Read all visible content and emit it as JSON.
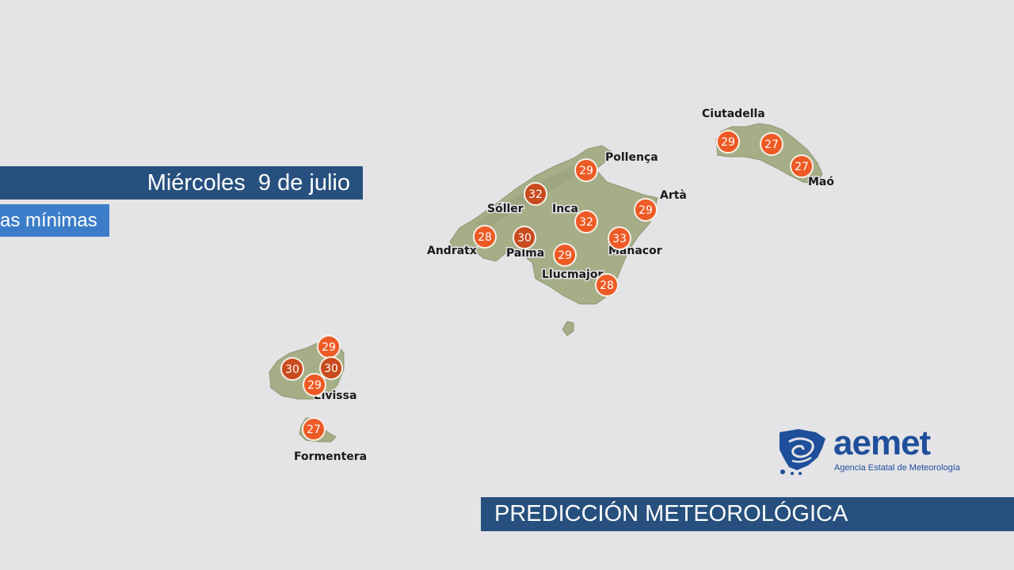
{
  "header": {
    "date_label": "Miércoles  9 de julio",
    "subtitle": "as mínimas"
  },
  "footer": {
    "title": "PREDICCIÓN METEOROLÓGICA"
  },
  "logo": {
    "word": "aemet",
    "tagline": "Agencia Estatal de Meteorología",
    "color": "#1f4f9a"
  },
  "colors": {
    "banner_dark": "#27507e",
    "banner_light": "#3c7dc9",
    "badge_orange": "#ee5a24",
    "badge_dark": "#c84a1d",
    "land": "#a5ae86",
    "sea": "#e4e3e6"
  },
  "temperatures": [
    {
      "value": "32",
      "tone": "dark"
    },
    {
      "value": "29",
      "tone": "orange"
    },
    {
      "value": "32",
      "tone": "orange"
    },
    {
      "value": "29",
      "tone": "orange"
    },
    {
      "value": "28",
      "tone": "orange"
    },
    {
      "value": "30",
      "tone": "dark"
    },
    {
      "value": "33",
      "tone": "orange"
    },
    {
      "value": "29",
      "tone": "orange"
    },
    {
      "value": "28",
      "tone": "orange"
    },
    {
      "value": "29",
      "tone": "orange"
    },
    {
      "value": "27",
      "tone": "orange"
    },
    {
      "value": "27",
      "tone": "orange"
    },
    {
      "value": "29",
      "tone": "orange"
    },
    {
      "value": "30",
      "tone": "dark"
    },
    {
      "value": "30",
      "tone": "dark"
    },
    {
      "value": "29",
      "tone": "orange"
    },
    {
      "value": "27",
      "tone": "orange"
    }
  ],
  "towns": [
    "Pollença",
    "Sóller",
    "Inca",
    "Artà",
    "Andratx",
    "Palma",
    "Manacor",
    "Llucmajor",
    "Ciutadella",
    "Maó",
    "Eivissa",
    "Formentera"
  ]
}
